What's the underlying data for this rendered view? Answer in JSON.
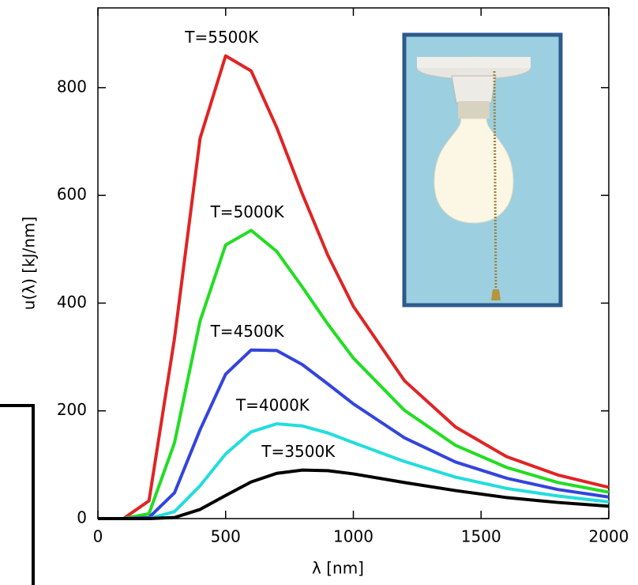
{
  "chart_data": {
    "type": "line",
    "x_label": "λ [nm]",
    "y_label": "u(λ)  [kJ/nm]",
    "x": [
      0,
      100,
      200,
      300,
      400,
      500,
      600,
      700,
      800,
      900,
      1000,
      1200,
      1400,
      1600,
      1800,
      2000
    ],
    "series": [
      {
        "name": "T=5500K",
        "color": "#e02424",
        "values": [
          0,
          0,
          33,
          335,
          706,
          859,
          831,
          726,
          603,
          489,
          394,
          256,
          170,
          115,
          81,
          58
        ]
      },
      {
        "name": "T=5000K",
        "color": "#22dd22",
        "values": [
          0,
          0,
          9,
          141,
          367,
          508,
          535,
          496,
          430,
          361,
          298,
          201,
          136,
          95,
          67,
          49
        ]
      },
      {
        "name": "T=4500K",
        "color": "#3344dd",
        "values": [
          0,
          0,
          2,
          48,
          165,
          268,
          313,
          312,
          286,
          250,
          213,
          150,
          105,
          75,
          54,
          40
        ]
      },
      {
        "name": "T=4000K",
        "color": "#22dddd",
        "values": [
          0,
          0,
          0,
          13,
          61,
          120,
          161,
          176,
          172,
          159,
          141,
          106,
          77,
          56,
          42,
          31
        ]
      },
      {
        "name": "T=3500K",
        "color": "#000000",
        "values": [
          0,
          0,
          0,
          2,
          17,
          43,
          68,
          84,
          90,
          89,
          83,
          67,
          52,
          39,
          30,
          23
        ]
      }
    ],
    "xlim": [
      0,
      2000
    ],
    "ylim": [
      0,
      948
    ],
    "xticks": [
      0,
      500,
      1000,
      1500,
      2000
    ],
    "yticks": [
      0,
      200,
      400,
      600,
      800
    ],
    "grid": false
  }
}
